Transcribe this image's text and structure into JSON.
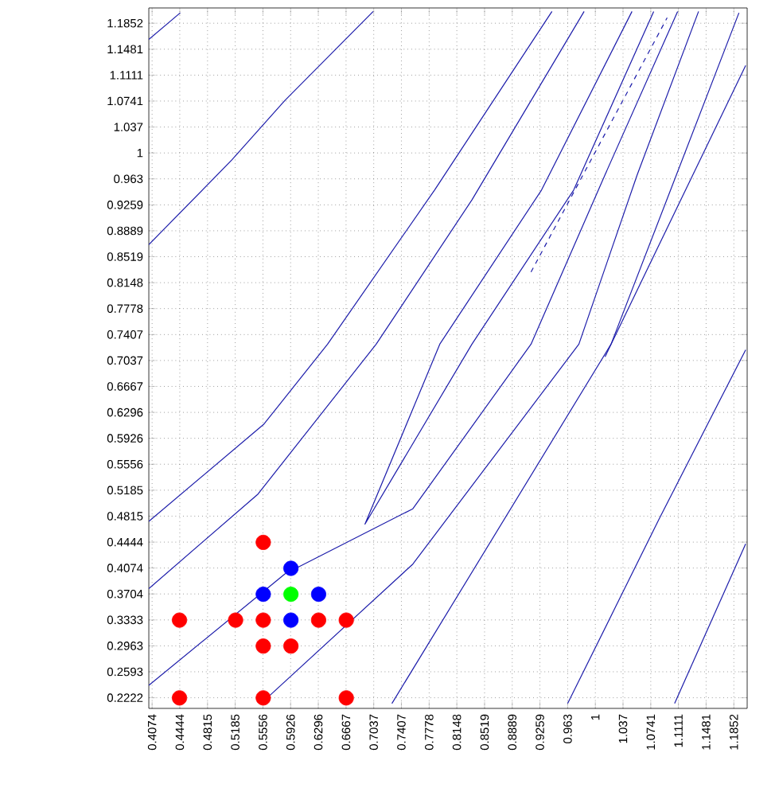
{
  "chart_data": {
    "type": "scatter",
    "xlim": [
      0.403,
      1.203
    ],
    "ylim": [
      0.207,
      1.207
    ],
    "xticks": [
      0.4074,
      0.4444,
      0.4815,
      0.5185,
      0.5556,
      0.5926,
      0.6296,
      0.6667,
      0.7037,
      0.7407,
      0.7778,
      0.8148,
      0.8519,
      0.8889,
      0.9259,
      0.963,
      1,
      1.037,
      1.0741,
      1.1111,
      1.1481,
      1.1852
    ],
    "yticks": [
      0.2222,
      0.2593,
      0.2963,
      0.3333,
      0.3704,
      0.4074,
      0.4444,
      0.4815,
      0.5185,
      0.5556,
      0.5926,
      0.6296,
      0.6667,
      0.7037,
      0.7407,
      0.7778,
      0.8148,
      0.8519,
      0.8889,
      0.9259,
      0.963,
      1,
      1.037,
      1.0741,
      1.1111,
      1.1481,
      1.1852
    ],
    "grid": true,
    "marker": "circle",
    "series": [
      {
        "type": "line",
        "marker": "none",
        "line_style": "solid",
        "color": "#1c1caa",
        "x": [
          0.403,
          0.445
        ],
        "values": [
          1.162,
          1.2
        ]
      },
      {
        "type": "line",
        "marker": "none",
        "line_style": "solid",
        "color": "#1c1caa",
        "x": [
          0.403,
          0.514,
          0.585,
          0.703
        ],
        "values": [
          0.869,
          0.99,
          1.075,
          1.202
        ]
      },
      {
        "type": "line",
        "marker": "none",
        "line_style": "solid",
        "color": "#1c1caa",
        "x": [
          0.403,
          0.557,
          0.642,
          0.785,
          0.942
        ],
        "values": [
          0.474,
          0.613,
          0.727,
          0.947,
          1.202
        ]
      },
      {
        "type": "line",
        "marker": "none",
        "line_style": "solid",
        "color": "#1c1caa",
        "x": [
          0.403,
          0.549,
          0.707,
          0.835,
          0.985
        ],
        "values": [
          0.378,
          0.513,
          0.727,
          0.933,
          1.202
        ]
      },
      {
        "type": "line",
        "marker": "none",
        "line_style": "solid",
        "color": "#1c1caa",
        "x": [
          0.403,
          0.585,
          0.756,
          0.914,
          1.013,
          1.11
        ],
        "values": [
          0.24,
          0.399,
          0.492,
          0.727,
          0.969,
          1.202
        ]
      },
      {
        "type": "line",
        "marker": "none",
        "line_style": "solid",
        "color": "#1c1caa",
        "x": [
          0.553,
          0.756,
          0.978,
          1.056,
          1.138
        ],
        "values": [
          0.214,
          0.413,
          0.727,
          0.969,
          1.202
        ]
      },
      {
        "type": "line",
        "marker": "none",
        "line_style": "solid",
        "color": "#1c1caa",
        "x": [
          0.728,
          1.021,
          1.192
        ],
        "values": [
          0.214,
          0.727,
          1.2
        ]
      },
      {
        "type": "line",
        "marker": "none",
        "line_style": "solid",
        "color": "#1c1caa",
        "x": [
          0.963,
          1.085,
          1.201
        ],
        "values": [
          0.214,
          0.477,
          0.719
        ]
      },
      {
        "type": "line",
        "marker": "none",
        "line_style": "solid",
        "color": "#1c1caa",
        "x": [
          1.106,
          1.201
        ],
        "values": [
          0.214,
          0.442
        ]
      },
      {
        "type": "line",
        "marker": "none",
        "line_style": "solid",
        "color": "#1c1caa",
        "x": [
          1.013,
          1.201
        ],
        "values": [
          0.709,
          1.125
        ]
      },
      {
        "type": "line",
        "marker": "none",
        "line_style": "solid",
        "color": "#1c1caa",
        "x": [
          1.049,
          0.928,
          0.792,
          0.692,
          0.835,
          0.971,
          1.078
        ],
        "values": [
          1.202,
          0.947,
          0.727,
          0.47,
          0.727,
          0.947,
          1.202
        ]
      },
      {
        "type": "line",
        "marker": "none",
        "line_style": "dashed",
        "color": "#1c1caa",
        "x": [
          0.914,
          1.096
        ],
        "values": [
          0.83,
          1.193
        ]
      },
      {
        "color": "#ff0000",
        "x": [
          0.444,
          0.519,
          0.556,
          0.63,
          0.667,
          0.556,
          0.556,
          0.593,
          0.444,
          0.556,
          0.667
        ],
        "values": [
          0.333,
          0.333,
          0.333,
          0.333,
          0.333,
          0.444,
          0.296,
          0.296,
          0.222,
          0.222,
          0.222
        ]
      },
      {
        "color": "#0000ff",
        "x": [
          0.593,
          0.556,
          0.63,
          0.593
        ],
        "values": [
          0.407,
          0.37,
          0.37,
          0.333
        ]
      },
      {
        "color": "#00ff00",
        "x": [
          0.593
        ],
        "values": [
          0.37
        ]
      }
    ]
  }
}
